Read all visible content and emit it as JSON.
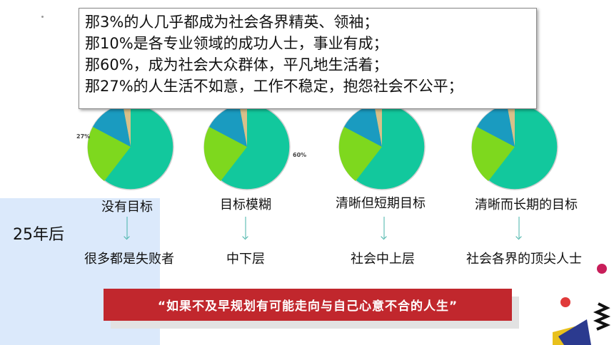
{
  "quote_lines": [
    "那3%的人几乎都成为社会各界精英、领袖；",
    "那10%是各专业领域的成功人士，事业有成；",
    "那60%，成为社会大众群体，平凡地生活着；",
    "那27%的人生活不如意，工作不稳定，抱怨社会不公平；"
  ],
  "pie_labels": {
    "p27": "27%",
    "p60": "60%"
  },
  "categories": [
    "没有目标",
    "目标模糊",
    "清晰但短期目标",
    "清晰而长期的目标"
  ],
  "years_label": "25年后",
  "results": [
    "很多都是失败者",
    "中下层",
    "社会中上层",
    "社会各界的顶尖人士"
  ],
  "banner_text": "“如果不及早规划有可能走向与自己心意不合的人生”",
  "colors": {
    "teal": "#12c89d",
    "green": "#7ed81e",
    "blue": "#1a9bc0",
    "tan": "#d8c08a",
    "red": "#c1272d",
    "arrow": "#46b3a8"
  }
}
